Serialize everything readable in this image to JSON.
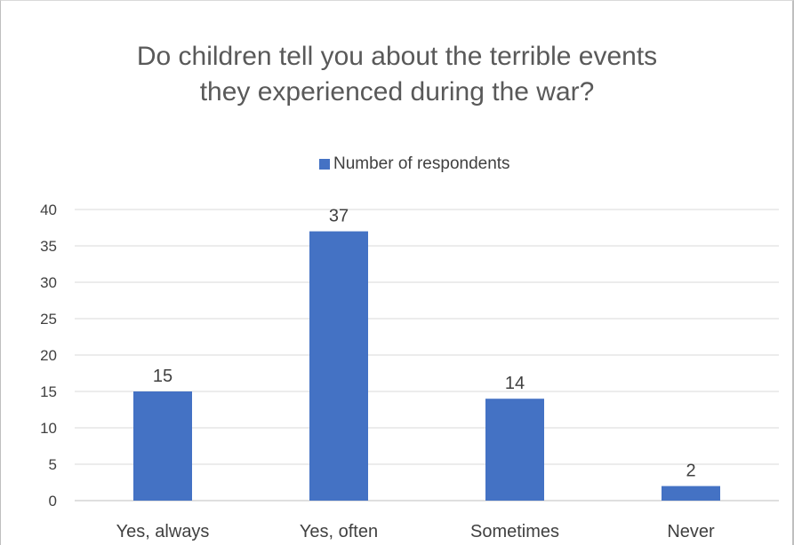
{
  "chart_data": {
    "type": "bar",
    "title_lines": [
      "Do children tell you about the terrible events",
      "they experienced  during the war?"
    ],
    "categories": [
      "Yes, always",
      "Yes, often",
      "Sometimes",
      "Never"
    ],
    "series": [
      {
        "name": "Number of respondents",
        "values": [
          15,
          37,
          14,
          2
        ],
        "color": "#4472c4"
      }
    ],
    "ylim": [
      0,
      40
    ],
    "yticks": [
      0,
      5,
      10,
      15,
      20,
      25,
      30,
      35,
      40
    ],
    "grid": true,
    "legend_position": "top",
    "data_labels": true
  }
}
